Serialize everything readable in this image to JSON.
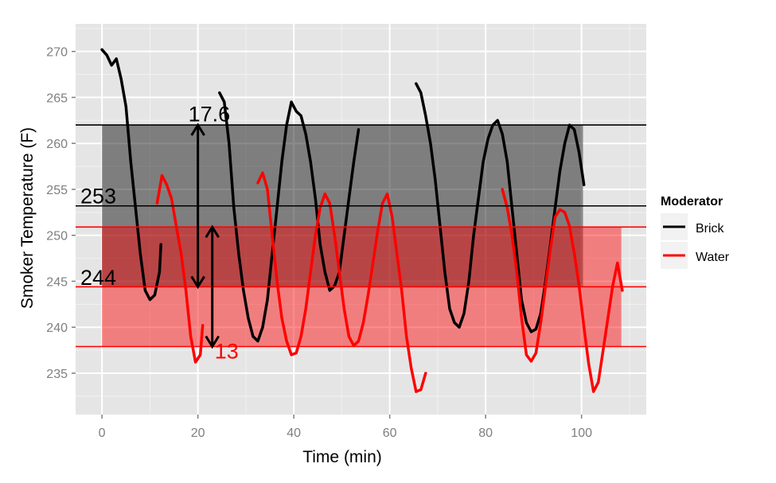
{
  "chart_data": {
    "type": "line",
    "title": "",
    "xlabel": "Time (min)",
    "ylabel": "Smoker Temperature (F)",
    "xlim": [
      -5.5,
      113.5
    ],
    "ylim": [
      230.5,
      273
    ],
    "x_ticks": [
      0,
      20,
      40,
      60,
      80,
      100
    ],
    "y_ticks": [
      235,
      240,
      245,
      250,
      255,
      260,
      265,
      270
    ],
    "grid": true,
    "legend": {
      "title": "Moderator",
      "position": "right",
      "entries": [
        {
          "label": "Brick",
          "color": "#000000"
        },
        {
          "label": "Water",
          "color": "#ff0000"
        }
      ]
    },
    "bands": [
      {
        "series": "Brick",
        "x": [
          0,
          100.3
        ],
        "y": [
          244.4,
          262
        ],
        "color": "#000000",
        "opacity": 0.45
      },
      {
        "series": "Water",
        "x": [
          0,
          108.3
        ],
        "y": [
          237.9,
          250.9
        ],
        "color": "#ff0000",
        "opacity": 0.45
      }
    ],
    "hlines": [
      {
        "y": 262,
        "color": "#000000"
      },
      {
        "y": 253.2,
        "color": "#000000"
      },
      {
        "y": 244.4,
        "color": "#ff0000"
      },
      {
        "y": 250.9,
        "color": "#ff0000"
      },
      {
        "y": 237.9,
        "color": "#ff0000"
      }
    ],
    "arrows": [
      {
        "x": 20,
        "y1": 244.4,
        "y2": 262,
        "color": "#000000"
      },
      {
        "x": 23,
        "y1": 237.9,
        "y2": 250.9,
        "color": "#000000"
      }
    ],
    "annotations": [
      {
        "text": "17.6",
        "x": 18,
        "y": 262.4,
        "color": "#000000"
      },
      {
        "text": "253",
        "x": -4.5,
        "y": 253.5,
        "color": "#000000"
      },
      {
        "text": "244",
        "x": -4.5,
        "y": 244.6,
        "color": "#000000"
      },
      {
        "text": "13",
        "x": 23.5,
        "y": 236.6,
        "color": "#ff0000"
      }
    ],
    "series": [
      {
        "name": "Brick",
        "color": "#000000",
        "segments": [
          [
            [
              0,
              270.2
            ],
            [
              1,
              269.6
            ],
            [
              2,
              268.5
            ],
            [
              3,
              269.2
            ],
            [
              4,
              267
            ],
            [
              5,
              264
            ],
            [
              6,
              258
            ],
            [
              7,
              253
            ],
            [
              8,
              248
            ],
            [
              9,
              244
            ],
            [
              10,
              243
            ],
            [
              11,
              243.5
            ],
            [
              12,
              246
            ],
            [
              12.3,
              249
            ]
          ],
          [
            [
              24.5,
              265.5
            ],
            [
              25.5,
              264.5
            ],
            [
              26.5,
              260
            ],
            [
              27.5,
              253
            ],
            [
              28.5,
              248
            ],
            [
              29.5,
              244
            ],
            [
              30.5,
              241
            ],
            [
              31.5,
              239
            ],
            [
              32.5,
              238.5
            ],
            [
              33.5,
              240
            ],
            [
              34.5,
              243
            ],
            [
              35.5,
              248
            ],
            [
              36.5,
              253
            ],
            [
              37.5,
              258
            ],
            [
              38.5,
              262
            ],
            [
              39.5,
              264.5
            ],
            [
              40.5,
              263.5
            ],
            [
              41.5,
              263
            ],
            [
              42.5,
              261
            ],
            [
              43.5,
              258
            ],
            [
              44.5,
              254
            ],
            [
              45.5,
              249
            ],
            [
              46.5,
              246
            ],
            [
              47.5,
              244
            ],
            [
              48.5,
              244.5
            ],
            [
              49.5,
              246
            ],
            [
              50.5,
              250
            ],
            [
              51.5,
              254
            ],
            [
              52.5,
              258
            ],
            [
              53.5,
              261.5
            ]
          ],
          [
            [
              65.5,
              266.5
            ],
            [
              66.5,
              265.5
            ],
            [
              67.5,
              263
            ],
            [
              68.5,
              260
            ],
            [
              69.5,
              256
            ],
            [
              70.5,
              251
            ],
            [
              71.5,
              246
            ],
            [
              72.5,
              242
            ],
            [
              73.5,
              240.5
            ],
            [
              74.5,
              240
            ],
            [
              75.5,
              241.5
            ],
            [
              76.5,
              245
            ],
            [
              77.5,
              250
            ],
            [
              78.5,
              254
            ],
            [
              79.5,
              258
            ],
            [
              80.5,
              260.5
            ],
            [
              81.5,
              262
            ],
            [
              82.5,
              262.5
            ],
            [
              83.5,
              261
            ],
            [
              84.5,
              258
            ],
            [
              85.5,
              253
            ],
            [
              86.5,
              248
            ],
            [
              87.5,
              243
            ],
            [
              88.5,
              240.5
            ],
            [
              89.5,
              239.5
            ],
            [
              90.5,
              239.8
            ],
            [
              91.5,
              241.5
            ],
            [
              92.5,
              245
            ],
            [
              93.5,
              249
            ],
            [
              94.5,
              253
            ],
            [
              95.5,
              257
            ],
            [
              96.5,
              260
            ],
            [
              97.5,
              262
            ],
            [
              98.5,
              261.5
            ],
            [
              99.5,
              259
            ],
            [
              100.5,
              255.5
            ]
          ]
        ]
      },
      {
        "name": "Water",
        "color": "#ff0000",
        "segments": [
          [
            [
              11.5,
              253.5
            ],
            [
              12.5,
              256.5
            ],
            [
              13.5,
              255.5
            ],
            [
              14.5,
              254
            ],
            [
              15.5,
              251
            ],
            [
              16.5,
              248
            ],
            [
              17.5,
              244
            ],
            [
              18.5,
              239
            ],
            [
              19.5,
              236.2
            ],
            [
              20.5,
              237
            ],
            [
              21,
              240.2
            ]
          ],
          [
            [
              32.5,
              255.7
            ],
            [
              33.5,
              256.8
            ],
            [
              34.5,
              255
            ],
            [
              35.5,
              250
            ],
            [
              36.5,
              245
            ],
            [
              37.5,
              241
            ],
            [
              38.5,
              238.5
            ],
            [
              39.5,
              237
            ],
            [
              40.5,
              237.2
            ],
            [
              41.5,
              239
            ],
            [
              42.5,
              242
            ],
            [
              43.5,
              246
            ],
            [
              44.5,
              250
            ],
            [
              45.5,
              253
            ],
            [
              46.5,
              254.5
            ],
            [
              47.5,
              253.5
            ],
            [
              48.5,
              250
            ],
            [
              49.5,
              246
            ],
            [
              50.5,
              242
            ],
            [
              51.5,
              239
            ],
            [
              52.5,
              238
            ],
            [
              53.5,
              238.5
            ],
            [
              54.5,
              240.5
            ],
            [
              55.5,
              243.5
            ],
            [
              56.5,
              247
            ],
            [
              57.5,
              250.5
            ],
            [
              58.5,
              253.5
            ],
            [
              59.5,
              254.5
            ],
            [
              60.5,
              252
            ],
            [
              61.5,
              248
            ],
            [
              62.5,
              244
            ],
            [
              63.5,
              239
            ],
            [
              64.5,
              235.5
            ],
            [
              65.5,
              233
            ],
            [
              66.5,
              233.2
            ],
            [
              67.5,
              235
            ]
          ],
          [
            [
              83.5,
              255
            ],
            [
              84.5,
              253
            ],
            [
              85.5,
              250
            ],
            [
              86.5,
              246
            ],
            [
              87.5,
              241
            ],
            [
              88.5,
              237
            ],
            [
              89.5,
              236.3
            ],
            [
              90.5,
              237.2
            ],
            [
              91.5,
              240.5
            ],
            [
              92.5,
              244.5
            ],
            [
              93.5,
              248.5
            ],
            [
              94.5,
              252
            ],
            [
              95.5,
              252.8
            ],
            [
              96.5,
              252.5
            ],
            [
              97.5,
              251
            ],
            [
              98.5,
              248
            ],
            [
              99.5,
              244.5
            ],
            [
              100.5,
              240
            ],
            [
              101.5,
              236
            ],
            [
              102.5,
              233
            ],
            [
              103.5,
              234
            ],
            [
              104.5,
              237.5
            ],
            [
              105.5,
              241
            ],
            [
              106.5,
              244.5
            ],
            [
              107.5,
              247
            ],
            [
              108.5,
              244
            ]
          ]
        ]
      }
    ]
  }
}
